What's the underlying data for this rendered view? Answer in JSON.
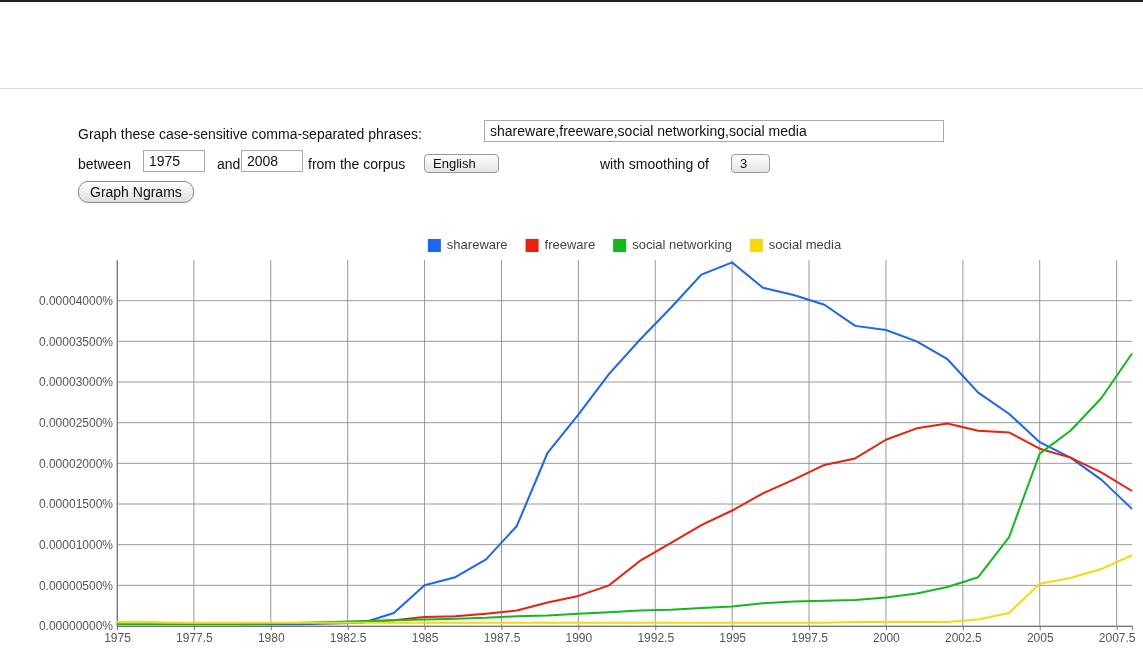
{
  "chart_data": {
    "type": "line",
    "annotations": [
      "Graph these case-sensitive comma-separated phrases:",
      "shareware,freeware,social networking,social media",
      "between",
      "1975",
      "and",
      "2008",
      "from the corpus",
      "English",
      "with smoothing of",
      "3",
      "Graph Ngrams"
    ],
    "x": [
      1975,
      1976,
      1977,
      1978,
      1979,
      1980,
      1981,
      1982,
      1983,
      1984,
      1985,
      1986,
      1987,
      1988,
      1989,
      1990,
      1991,
      1992,
      1993,
      1994,
      1995,
      1996,
      1997,
      1998,
      1999,
      2000,
      2001,
      2002,
      2003,
      2004,
      2005,
      2006,
      2007,
      2008
    ],
    "xlim": [
      1975,
      2008
    ],
    "xticks": [
      1975,
      {
        "value": 1977.5,
        "label": "1977.5"
      },
      1980,
      {
        "value": 1982.5,
        "label": "1982.5"
      },
      1985,
      {
        "value": 1987.5,
        "label": "1987.5"
      },
      1990,
      {
        "value": 1992.5,
        "label": "1992.5"
      },
      1995,
      {
        "value": 1997.5,
        "label": "1997.5"
      },
      2000,
      {
        "value": 2002.5,
        "label": "2002.5"
      },
      2005,
      {
        "value": 2007.5,
        "label": "2007.5"
      }
    ],
    "ylim": [
      0,
      4.5e-05
    ],
    "yticks": [
      {
        "value": 0,
        "label": "0.00000000%"
      },
      {
        "value": 5e-06,
        "label": "0.00000500%"
      },
      {
        "value": 1e-05,
        "label": "0.00001000%"
      },
      {
        "value": 1.5e-05,
        "label": "0.00001500%"
      },
      {
        "value": 2e-05,
        "label": "0.00002000%"
      },
      {
        "value": 2.5e-05,
        "label": "0.00002500%"
      },
      {
        "value": 3e-05,
        "label": "0.00003000%"
      },
      {
        "value": 3.5e-05,
        "label": "0.00003500%"
      },
      {
        "value": 4e-05,
        "label": "0.00004000%"
      }
    ],
    "grid": true,
    "legend": "top",
    "marker": "none",
    "line_style": "solid",
    "series": [
      {
        "name": "shareware",
        "color": "#1a66f0",
        "values": [
          null,
          null,
          null,
          null,
          2e-07,
          2e-07,
          2e-07,
          3e-07,
          4e-07,
          1.6e-06,
          5e-06,
          6e-06,
          8.2e-06,
          1.23e-05,
          2.13e-05,
          2.6e-05,
          3.1e-05,
          3.52e-05,
          3.91e-05,
          4.32e-05,
          4.47e-05,
          4.16e-05,
          4.07e-05,
          3.95e-05,
          3.69e-05,
          3.64e-05,
          3.5e-05,
          3.28e-05,
          2.87e-05,
          2.61e-05,
          2.26e-05,
          2.07e-05,
          1.8e-05,
          1.44e-05
        ]
      },
      {
        "name": "freeware",
        "color": "#e8200c",
        "values": [
          null,
          null,
          null,
          null,
          null,
          null,
          null,
          null,
          5e-07,
          7e-07,
          1.1e-06,
          1.2e-06,
          1.5e-06,
          1.9e-06,
          2.9e-06,
          3.7e-06,
          5e-06,
          8e-06,
          1.02e-05,
          1.24e-05,
          1.42e-05,
          1.63e-05,
          1.8e-05,
          1.98e-05,
          2.06e-05,
          2.29e-05,
          2.43e-05,
          2.49e-05,
          2.4e-05,
          2.38e-05,
          2.18e-05,
          2.07e-05,
          1.89e-05,
          1.66e-05
        ]
      },
      {
        "name": "social networking",
        "color": "#14b81e",
        "values": [
          2e-07,
          2e-07,
          2e-07,
          2e-07,
          2e-07,
          3e-07,
          4e-07,
          5e-07,
          6e-07,
          7e-07,
          8e-07,
          9e-07,
          1e-06,
          1.2e-06,
          1.3e-06,
          1.5e-06,
          1.7e-06,
          1.9e-06,
          2e-06,
          2.2e-06,
          2.4e-06,
          2.8e-06,
          3e-06,
          3.1e-06,
          3.2e-06,
          3.5e-06,
          4e-06,
          4.8e-06,
          6e-06,
          1.09e-05,
          2.12e-05,
          2.4e-05,
          2.8e-05,
          3.35e-05
        ]
      },
      {
        "name": "social media",
        "color": "#f5d90a",
        "values": [
          5e-07,
          5e-07,
          4e-07,
          4e-07,
          4e-07,
          4e-07,
          4e-07,
          4e-07,
          4e-07,
          4e-07,
          4e-07,
          4e-07,
          4e-07,
          4e-07,
          4e-07,
          4e-07,
          4e-07,
          4e-07,
          4e-07,
          4e-07,
          4e-07,
          4e-07,
          4e-07,
          4e-07,
          5e-07,
          5e-07,
          5e-07,
          5e-07,
          8e-07,
          1.6e-06,
          5.2e-06,
          5.9e-06,
          7e-06,
          8.7e-06
        ]
      }
    ]
  }
}
